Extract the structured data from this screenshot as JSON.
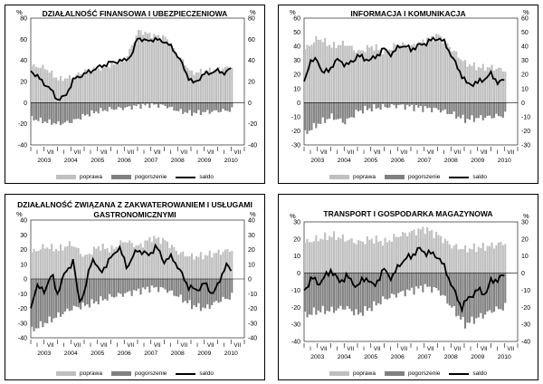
{
  "legend": {
    "improve": "poprawa",
    "worsen": "pogorszenie",
    "balance": "saldo"
  },
  "colors": {
    "improve": "#bfbfbf",
    "worsen": "#808080",
    "balance": "#000000"
  },
  "year_labels": [
    "2003",
    "2004",
    "2005",
    "2006",
    "2007",
    "2008",
    "2009",
    "2010"
  ],
  "month_ticks": [
    "I",
    "VII"
  ],
  "chart_data": [
    {
      "type": "area",
      "title": "DZIAŁALNOŚĆ FINANSOWA I UBEZPIECZENIOWA",
      "title_lines": [
        "DZIAŁALNOŚĆ FINANSOWA I UBEZPIECZENIOWA"
      ],
      "ylim": [
        -40,
        80
      ],
      "yticks": [
        -40,
        -20,
        0,
        20,
        40,
        60,
        80
      ],
      "unit": "%",
      "series": [
        {
          "name": "poprawa",
          "anchors": [
            [
              2003.0,
              35
            ],
            [
              2003.5,
              33
            ],
            [
              2004.0,
              22
            ],
            [
              2004.5,
              24
            ],
            [
              2005.0,
              30
            ],
            [
              2005.5,
              32
            ],
            [
              2006.0,
              36
            ],
            [
              2006.5,
              40
            ],
            [
              2007.0,
              68
            ],
            [
              2007.5,
              64
            ],
            [
              2008.0,
              62
            ],
            [
              2008.5,
              45
            ],
            [
              2009.0,
              28
            ],
            [
              2009.5,
              30
            ],
            [
              2010.0,
              32
            ],
            [
              2010.5,
              34
            ]
          ]
        },
        {
          "name": "pogorszenie",
          "anchors": [
            [
              2003.0,
              -15
            ],
            [
              2003.5,
              -18
            ],
            [
              2004.0,
              -20
            ],
            [
              2004.5,
              -18
            ],
            [
              2005.0,
              -12
            ],
            [
              2005.5,
              -8
            ],
            [
              2006.0,
              -6
            ],
            [
              2006.5,
              -5
            ],
            [
              2007.0,
              -3
            ],
            [
              2007.5,
              -2
            ],
            [
              2008.0,
              -3
            ],
            [
              2008.5,
              -8
            ],
            [
              2009.0,
              -10
            ],
            [
              2009.5,
              -9
            ],
            [
              2010.0,
              -8
            ],
            [
              2010.5,
              -7
            ]
          ]
        },
        {
          "name": "saldo",
          "anchors": [
            [
              2003.0,
              30
            ],
            [
              2003.2,
              26
            ],
            [
              2003.5,
              18
            ],
            [
              2003.7,
              14
            ],
            [
              2004.0,
              3
            ],
            [
              2004.3,
              6
            ],
            [
              2004.6,
              22
            ],
            [
              2005.0,
              27
            ],
            [
              2005.5,
              33
            ],
            [
              2006.0,
              38
            ],
            [
              2006.5,
              40
            ],
            [
              2006.8,
              45
            ],
            [
              2007.0,
              62
            ],
            [
              2007.3,
              58
            ],
            [
              2007.6,
              60
            ],
            [
              2008.0,
              58
            ],
            [
              2008.3,
              52
            ],
            [
              2008.6,
              40
            ],
            [
              2008.9,
              24
            ],
            [
              2009.1,
              18
            ],
            [
              2009.5,
              27
            ],
            [
              2010.0,
              30
            ],
            [
              2010.3,
              28
            ],
            [
              2010.6,
              35
            ]
          ]
        }
      ]
    },
    {
      "type": "area",
      "title": "INFORMACJA I KOMUNIKACJA",
      "title_lines": [
        "INFORMACJA I KOMUNIKACJA"
      ],
      "ylim": [
        -30,
        60
      ],
      "yticks": [
        -30,
        -20,
        -10,
        0,
        10,
        20,
        30,
        40,
        50,
        60
      ],
      "unit": "%",
      "series": [
        {
          "name": "poprawa",
          "anchors": [
            [
              2003.0,
              38
            ],
            [
              2003.5,
              46
            ],
            [
              2004.0,
              40
            ],
            [
              2004.5,
              42
            ],
            [
              2005.0,
              36
            ],
            [
              2005.5,
              40
            ],
            [
              2006.0,
              36
            ],
            [
              2006.5,
              42
            ],
            [
              2007.0,
              40
            ],
            [
              2007.5,
              44
            ],
            [
              2008.0,
              48
            ],
            [
              2008.5,
              38
            ],
            [
              2009.0,
              28
            ],
            [
              2009.5,
              25
            ],
            [
              2010.0,
              25
            ],
            [
              2010.5,
              23
            ]
          ]
        },
        {
          "name": "pogorszenie",
          "anchors": [
            [
              2003.0,
              -22
            ],
            [
              2003.5,
              -15
            ],
            [
              2004.0,
              -10
            ],
            [
              2004.5,
              -14
            ],
            [
              2005.0,
              -6
            ],
            [
              2005.5,
              -4
            ],
            [
              2006.0,
              -3
            ],
            [
              2006.5,
              -2
            ],
            [
              2007.0,
              -3
            ],
            [
              2007.5,
              -4
            ],
            [
              2008.0,
              -5
            ],
            [
              2008.5,
              -8
            ],
            [
              2009.0,
              -12
            ],
            [
              2009.5,
              -11
            ],
            [
              2010.0,
              -10
            ],
            [
              2010.5,
              -9
            ]
          ]
        },
        {
          "name": "saldo",
          "anchors": [
            [
              2003.0,
              15
            ],
            [
              2003.2,
              28
            ],
            [
              2003.5,
              31
            ],
            [
              2003.7,
              20
            ],
            [
              2004.0,
              25
            ],
            [
              2004.3,
              31
            ],
            [
              2004.6,
              26
            ],
            [
              2005.0,
              33
            ],
            [
              2005.5,
              30
            ],
            [
              2006.0,
              38
            ],
            [
              2006.3,
              34
            ],
            [
              2006.6,
              41
            ],
            [
              2007.0,
              38
            ],
            [
              2007.5,
              42
            ],
            [
              2008.0,
              46
            ],
            [
              2008.3,
              42
            ],
            [
              2008.6,
              30
            ],
            [
              2008.9,
              20
            ],
            [
              2009.1,
              13
            ],
            [
              2009.5,
              14
            ],
            [
              2010.0,
              20
            ],
            [
              2010.3,
              14
            ],
            [
              2010.6,
              17
            ]
          ]
        }
      ]
    },
    {
      "type": "area",
      "title": "DZIAŁALNOŚĆ ZWIĄZANA Z ZAKWATEROWANIEM I USŁUGAMI GASTRONOMICZNYMI",
      "title_lines": [
        "DZIAŁALNOŚĆ ZWIĄZANA Z ZAKWATEROWANIEM I USŁUGAMI",
        "GASTRONOMICZNYMI"
      ],
      "ylim": [
        -40,
        40
      ],
      "yticks": [
        -40,
        -30,
        -20,
        -10,
        0,
        10,
        20,
        30,
        40
      ],
      "unit": "%",
      "series": [
        {
          "name": "poprawa",
          "anchors": [
            [
              2003.0,
              18
            ],
            [
              2003.5,
              22
            ],
            [
              2004.0,
              20
            ],
            [
              2004.5,
              24
            ],
            [
              2005.0,
              15
            ],
            [
              2005.5,
              22
            ],
            [
              2006.0,
              20
            ],
            [
              2006.5,
              26
            ],
            [
              2007.0,
              22
            ],
            [
              2007.5,
              28
            ],
            [
              2008.0,
              26
            ],
            [
              2008.5,
              18
            ],
            [
              2009.0,
              15
            ],
            [
              2009.5,
              16
            ],
            [
              2010.0,
              18
            ],
            [
              2010.5,
              20
            ]
          ]
        },
        {
          "name": "pogorszenie",
          "anchors": [
            [
              2003.0,
              -35
            ],
            [
              2003.5,
              -30
            ],
            [
              2004.0,
              -25
            ],
            [
              2004.5,
              -20
            ],
            [
              2005.0,
              -18
            ],
            [
              2005.5,
              -15
            ],
            [
              2006.0,
              -12
            ],
            [
              2006.5,
              -10
            ],
            [
              2007.0,
              -8
            ],
            [
              2007.5,
              -6
            ],
            [
              2008.0,
              -7
            ],
            [
              2008.5,
              -12
            ],
            [
              2009.0,
              -18
            ],
            [
              2009.5,
              -20
            ],
            [
              2010.0,
              -15
            ],
            [
              2010.5,
              -12
            ]
          ]
        },
        {
          "name": "saldo",
          "anchors": [
            [
              2003.0,
              -20
            ],
            [
              2003.2,
              -5
            ],
            [
              2003.5,
              -8
            ],
            [
              2003.8,
              3
            ],
            [
              2004.0,
              -10
            ],
            [
              2004.3,
              5
            ],
            [
              2004.6,
              12
            ],
            [
              2004.8,
              -15
            ],
            [
              2005.0,
              -10
            ],
            [
              2005.3,
              15
            ],
            [
              2005.6,
              4
            ],
            [
              2006.0,
              14
            ],
            [
              2006.3,
              22
            ],
            [
              2006.6,
              8
            ],
            [
              2007.0,
              20
            ],
            [
              2007.4,
              16
            ],
            [
              2007.7,
              22
            ],
            [
              2008.0,
              12
            ],
            [
              2008.3,
              15
            ],
            [
              2008.6,
              5
            ],
            [
              2008.9,
              -5
            ],
            [
              2009.2,
              -8
            ],
            [
              2009.5,
              -3
            ],
            [
              2009.8,
              -10
            ],
            [
              2010.0,
              -5
            ],
            [
              2010.3,
              10
            ],
            [
              2010.6,
              3
            ]
          ]
        }
      ]
    },
    {
      "type": "area",
      "title": "TRANSPORT I GOSPODARKA MAGAZYNOWA",
      "title_lines": [
        "TRANSPORT I GOSPODARKA MAGAZYNOWA"
      ],
      "ylim": [
        -40,
        30
      ],
      "yticks": [
        -40,
        -30,
        -20,
        -10,
        0,
        10,
        20,
        30
      ],
      "unit": "%",
      "series": [
        {
          "name": "poprawa",
          "anchors": [
            [
              2003.0,
              18
            ],
            [
              2003.5,
              20
            ],
            [
              2004.0,
              22
            ],
            [
              2004.5,
              20
            ],
            [
              2005.0,
              18
            ],
            [
              2005.5,
              20
            ],
            [
              2006.0,
              18
            ],
            [
              2006.5,
              22
            ],
            [
              2007.0,
              24
            ],
            [
              2007.5,
              26
            ],
            [
              2008.0,
              22
            ],
            [
              2008.5,
              16
            ],
            [
              2009.0,
              14
            ],
            [
              2009.5,
              15
            ],
            [
              2010.0,
              16
            ],
            [
              2010.5,
              18
            ]
          ]
        },
        {
          "name": "pogorszenie",
          "anchors": [
            [
              2003.0,
              -25
            ],
            [
              2003.5,
              -22
            ],
            [
              2004.0,
              -22
            ],
            [
              2004.5,
              -20
            ],
            [
              2005.0,
              -24
            ],
            [
              2005.5,
              -20
            ],
            [
              2006.0,
              -15
            ],
            [
              2006.5,
              -12
            ],
            [
              2007.0,
              -10
            ],
            [
              2007.5,
              -8
            ],
            [
              2008.0,
              -10
            ],
            [
              2008.5,
              -20
            ],
            [
              2009.0,
              -30
            ],
            [
              2009.5,
              -26
            ],
            [
              2010.0,
              -22
            ],
            [
              2010.5,
              -20
            ]
          ]
        },
        {
          "name": "saldo",
          "anchors": [
            [
              2003.0,
              -10
            ],
            [
              2003.3,
              -3
            ],
            [
              2003.6,
              -6
            ],
            [
              2004.0,
              2
            ],
            [
              2004.3,
              -5
            ],
            [
              2004.6,
              -2
            ],
            [
              2005.0,
              -8
            ],
            [
              2005.3,
              -2
            ],
            [
              2005.6,
              -8
            ],
            [
              2006.0,
              2
            ],
            [
              2006.3,
              -3
            ],
            [
              2006.6,
              6
            ],
            [
              2007.0,
              10
            ],
            [
              2007.3,
              14
            ],
            [
              2007.6,
              12
            ],
            [
              2008.0,
              10
            ],
            [
              2008.3,
              2
            ],
            [
              2008.6,
              -10
            ],
            [
              2008.9,
              -20
            ],
            [
              2009.2,
              -14
            ],
            [
              2009.5,
              -10
            ],
            [
              2009.8,
              -12
            ],
            [
              2010.0,
              -5
            ],
            [
              2010.3,
              -3
            ],
            [
              2010.6,
              -1
            ]
          ]
        }
      ]
    }
  ]
}
